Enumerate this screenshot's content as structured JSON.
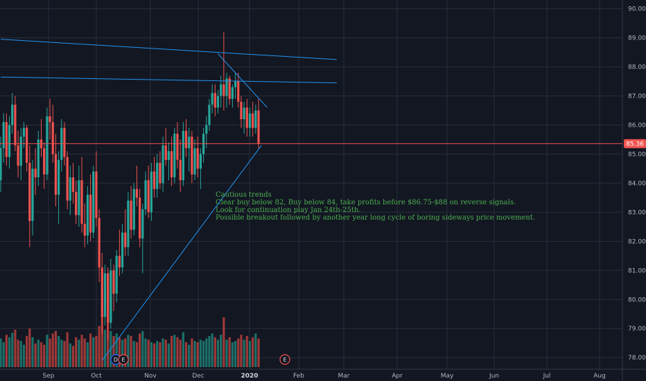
{
  "chart_data": {
    "type": "candlestick",
    "theme_colors": {
      "background": "#131722",
      "grid": "#2a2e39",
      "up": "#26a69a",
      "down": "#ef5350",
      "up_volume": "#1f7f74",
      "down_volume": "#b73f3d",
      "trendline": "#2196f3",
      "annotation": "#4caf50",
      "axis_text": "#b2b5be"
    },
    "y_axis": {
      "range": [
        77.6,
        90.3
      ],
      "ticks": [
        "90.00",
        "89.00",
        "88.00",
        "87.00",
        "86.00",
        "85.00",
        "84.00",
        "83.00",
        "82.00",
        "81.00",
        "80.00",
        "79.00",
        "78.00"
      ]
    },
    "x_axis": {
      "labels": [
        {
          "text": "Sep",
          "bold": false
        },
        {
          "text": "Oct",
          "bold": false
        },
        {
          "text": "Nov",
          "bold": false
        },
        {
          "text": "Dec",
          "bold": false
        },
        {
          "text": "2020",
          "bold": true
        },
        {
          "text": "Feb",
          "bold": false
        },
        {
          "text": "Mar",
          "bold": false
        },
        {
          "text": "Apr",
          "bold": false
        },
        {
          "text": "May",
          "bold": false
        },
        {
          "text": "Jun",
          "bold": false
        },
        {
          "text": "Jul",
          "bold": false
        },
        {
          "text": "Aug",
          "bold": false
        }
      ]
    },
    "last_price": "85.36",
    "last_price_value": 85.36,
    "annotation_lines": [
      "Cautious trends",
      "Clear buy below 82, Buy below 84, take profits before $86.75-$88 on reverse signals.",
      "Look for continuation play Jan 24th-25th.",
      "Possible breakout followed by another year long cycle of boring sideways price movement."
    ],
    "event_markers": [
      {
        "label": "D",
        "color": "#2962ff"
      },
      {
        "label": "E",
        "color": "#ef5350"
      },
      {
        "label": "E",
        "color": "#ef5350"
      }
    ],
    "trendlines": [
      {
        "name": "upper-resistance",
        "p1": [
          0,
          88.95
        ],
        "p2": [
          116,
          88.25
        ]
      },
      {
        "name": "lower-resistance",
        "p1": [
          0,
          87.65
        ],
        "p2": [
          116,
          87.45
        ]
      },
      {
        "name": "rising-support",
        "p1": [
          35,
          77.9
        ],
        "p2": [
          90,
          85.3
        ]
      },
      {
        "name": "falling-wedge-top",
        "p1": [
          75,
          88.45
        ],
        "p2": [
          92,
          86.6
        ]
      }
    ],
    "candles": [
      [
        84.1,
        85.6,
        83.7,
        85.2,
        0.46
      ],
      [
        85.2,
        86.4,
        84.7,
        86.1,
        0.4
      ],
      [
        86.1,
        86.4,
        84.6,
        84.9,
        0.52
      ],
      [
        84.9,
        86.3,
        84.5,
        86.0,
        0.48
      ],
      [
        86.0,
        87.1,
        85.7,
        86.7,
        0.55
      ],
      [
        86.7,
        87.0,
        85.1,
        85.3,
        0.6
      ],
      [
        85.3,
        85.8,
        84.2,
        84.6,
        0.44
      ],
      [
        84.6,
        85.9,
        84.1,
        85.6,
        0.42
      ],
      [
        85.6,
        86.1,
        85.2,
        85.9,
        0.36
      ],
      [
        85.9,
        86.0,
        84.4,
        84.7,
        0.5
      ],
      [
        84.7,
        85.3,
        81.8,
        82.7,
        0.62
      ],
      [
        82.7,
        84.8,
        82.2,
        84.5,
        0.48
      ],
      [
        84.5,
        85.2,
        83.6,
        84.2,
        0.38
      ],
      [
        84.2,
        85.8,
        83.9,
        85.5,
        0.44
      ],
      [
        85.5,
        86.2,
        84.9,
        85.2,
        0.4
      ],
      [
        85.2,
        85.4,
        83.8,
        84.3,
        0.36
      ],
      [
        84.3,
        86.6,
        84.1,
        86.3,
        0.52
      ],
      [
        86.3,
        86.9,
        85.5,
        86.1,
        0.46
      ],
      [
        86.1,
        86.7,
        84.7,
        85.0,
        0.54
      ],
      [
        85.0,
        85.7,
        83.2,
        83.6,
        0.58
      ],
      [
        83.6,
        85.1,
        82.6,
        84.8,
        0.5
      ],
      [
        84.8,
        86.2,
        84.4,
        85.9,
        0.44
      ],
      [
        85.9,
        86.1,
        84.6,
        84.9,
        0.42
      ],
      [
        84.9,
        85.1,
        83.1,
        83.4,
        0.56
      ],
      [
        83.4,
        84.6,
        82.9,
        84.2,
        0.38
      ],
      [
        84.2,
        84.7,
        83.3,
        83.7,
        0.34
      ],
      [
        83.7,
        84.1,
        82.6,
        82.9,
        0.48
      ],
      [
        82.9,
        84.6,
        82.5,
        84.1,
        0.44
      ],
      [
        84.1,
        84.9,
        82.3,
        82.6,
        0.52
      ],
      [
        82.6,
        83.3,
        81.8,
        82.2,
        0.46
      ],
      [
        82.2,
        83.9,
        81.9,
        83.6,
        0.4
      ],
      [
        83.6,
        84.3,
        82.0,
        82.3,
        0.54
      ],
      [
        82.3,
        84.6,
        82.1,
        84.4,
        0.48
      ],
      [
        84.4,
        85.1,
        82.5,
        82.8,
        0.5
      ],
      [
        82.8,
        83.1,
        80.6,
        81.1,
        0.66
      ],
      [
        81.1,
        81.6,
        78.8,
        79.4,
        0.84
      ],
      [
        79.4,
        81.2,
        79.1,
        80.9,
        0.6
      ],
      [
        80.9,
        81.1,
        78.6,
        79.2,
        0.72
      ],
      [
        79.2,
        81.4,
        79.0,
        81.0,
        0.58
      ],
      [
        81.0,
        81.2,
        79.6,
        80.2,
        0.5
      ],
      [
        80.2,
        81.7,
        79.9,
        81.5,
        0.54
      ],
      [
        81.5,
        82.4,
        80.8,
        81.1,
        0.48
      ],
      [
        81.1,
        82.6,
        80.9,
        82.3,
        0.44
      ],
      [
        82.3,
        83.1,
        81.5,
        81.8,
        0.46
      ],
      [
        81.8,
        83.7,
        81.5,
        83.4,
        0.52
      ],
      [
        83.4,
        83.9,
        82.1,
        82.4,
        0.5
      ],
      [
        82.4,
        84.0,
        82.2,
        83.8,
        0.42
      ],
      [
        83.8,
        84.6,
        83.2,
        83.5,
        0.4
      ],
      [
        83.5,
        83.8,
        81.8,
        82.1,
        0.54
      ],
      [
        82.1,
        83.3,
        80.9,
        83.1,
        0.58
      ],
      [
        83.1,
        84.4,
        82.9,
        84.1,
        0.46
      ],
      [
        84.1,
        84.6,
        82.8,
        83.0,
        0.44
      ],
      [
        83.0,
        84.7,
        82.7,
        84.4,
        0.4
      ],
      [
        84.4,
        84.9,
        83.5,
        83.8,
        0.38
      ],
      [
        83.8,
        85.0,
        83.5,
        84.7,
        0.42
      ],
      [
        84.7,
        85.1,
        83.8,
        84.0,
        0.4
      ],
      [
        84.0,
        85.6,
        83.7,
        85.3,
        0.46
      ],
      [
        85.3,
        85.9,
        84.6,
        84.8,
        0.44
      ],
      [
        84.8,
        85.4,
        84.1,
        85.1,
        0.38
      ],
      [
        85.1,
        85.6,
        83.9,
        84.2,
        0.5
      ],
      [
        84.2,
        85.9,
        84.0,
        85.7,
        0.52
      ],
      [
        85.7,
        86.1,
        84.5,
        84.8,
        0.48
      ],
      [
        84.8,
        85.5,
        83.7,
        84.1,
        0.44
      ],
      [
        84.1,
        86.1,
        83.9,
        85.8,
        0.56
      ],
      [
        85.8,
        86.2,
        84.9,
        85.2,
        0.4
      ],
      [
        85.2,
        85.9,
        84.4,
        85.6,
        0.36
      ],
      [
        85.6,
        85.8,
        84.0,
        84.3,
        0.46
      ],
      [
        84.3,
        85.5,
        84.1,
        85.2,
        0.42
      ],
      [
        85.2,
        85.6,
        84.2,
        84.5,
        0.4
      ],
      [
        84.5,
        85.2,
        83.8,
        85.0,
        0.44
      ],
      [
        85.0,
        85.9,
        84.7,
        85.7,
        0.42
      ],
      [
        85.7,
        86.3,
        85.2,
        86.0,
        0.46
      ],
      [
        86.0,
        86.9,
        85.8,
        86.7,
        0.5
      ],
      [
        86.7,
        87.4,
        86.4,
        87.1,
        0.54
      ],
      [
        87.1,
        87.4,
        86.3,
        86.6,
        0.48
      ],
      [
        86.6,
        87.2,
        86.4,
        87.0,
        0.44
      ],
      [
        87.0,
        87.7,
        86.6,
        87.4,
        0.52
      ],
      [
        87.4,
        89.2,
        86.5,
        87.0,
        0.8
      ],
      [
        87.0,
        87.8,
        86.6,
        87.6,
        0.44
      ],
      [
        87.6,
        87.7,
        86.7,
        86.9,
        0.48
      ],
      [
        86.9,
        87.4,
        86.6,
        87.3,
        0.4
      ],
      [
        87.3,
        87.8,
        86.9,
        87.5,
        0.42
      ],
      [
        87.5,
        87.8,
        86.6,
        86.8,
        0.46
      ],
      [
        86.8,
        87.0,
        85.9,
        86.2,
        0.52
      ],
      [
        86.2,
        86.8,
        85.7,
        86.6,
        0.44
      ],
      [
        86.6,
        86.9,
        85.6,
        85.9,
        0.5
      ],
      [
        85.9,
        86.6,
        85.6,
        86.4,
        0.42
      ],
      [
        86.4,
        86.8,
        85.6,
        85.9,
        0.48
      ],
      [
        85.9,
        86.7,
        85.7,
        86.5,
        0.54
      ],
      [
        86.5,
        86.9,
        85.2,
        85.36,
        0.46
      ]
    ]
  }
}
